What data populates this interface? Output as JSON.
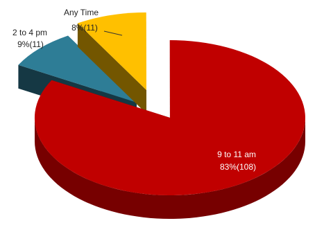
{
  "chart_data": {
    "type": "pie",
    "style": "3d-exploded",
    "slices": [
      {
        "name": "9 to 11 am",
        "percent_label": "83%(108)",
        "value": 108,
        "color": "#c00000"
      },
      {
        "name": "2 to 4 pm",
        "percent_label": "9%(11)",
        "value": 11,
        "color": "#2e7d96"
      },
      {
        "name": "Any Time",
        "percent_label": "8%(11)",
        "value": 11,
        "color": "#ffc000"
      }
    ]
  }
}
